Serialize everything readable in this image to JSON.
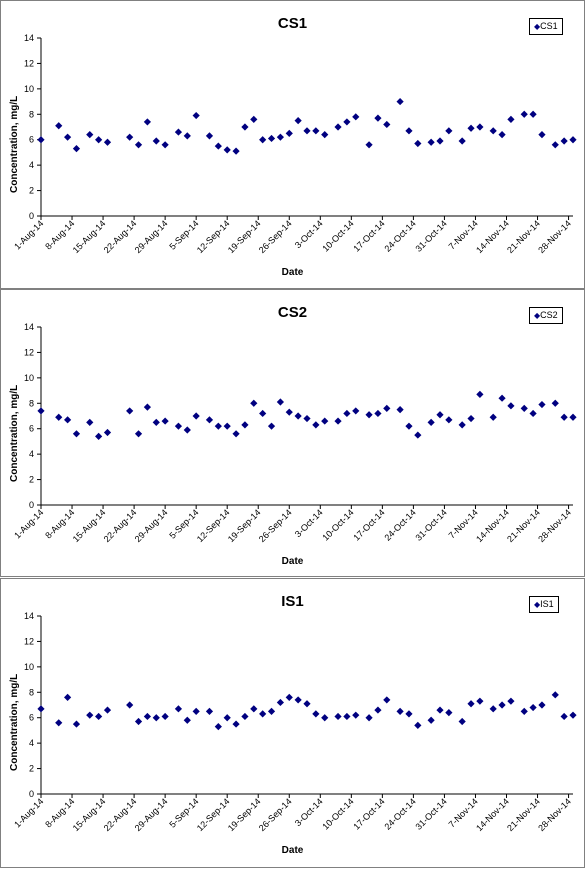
{
  "chart_data": [
    {
      "type": "scatter",
      "title": "CS1",
      "xlabel": "Date",
      "ylabel": "Concentration, mg/L",
      "ylim": [
        0,
        14
      ],
      "yticks": [
        0,
        2,
        4,
        6,
        8,
        10,
        12,
        14
      ],
      "xlim": [
        "2014-08-01",
        "2014-11-29"
      ],
      "xtick_labels": [
        "1-Aug-14",
        "8-Aug-14",
        "15-Aug-14",
        "22-Aug-14",
        "29-Aug-14",
        "5-Sep-14",
        "12-Sep-14",
        "19-Sep-14",
        "26-Sep-14",
        "3-Oct-14",
        "10-Oct-14",
        "17-Oct-14",
        "24-Oct-14",
        "31-Oct-14",
        "7-Nov-14",
        "14-Nov-14",
        "21-Nov-14",
        "28-Nov-14"
      ],
      "xtick_dates": [
        "2014-08-01",
        "2014-08-08",
        "2014-08-15",
        "2014-08-22",
        "2014-08-29",
        "2014-09-05",
        "2014-09-12",
        "2014-09-19",
        "2014-09-26",
        "2014-10-03",
        "2014-10-10",
        "2014-10-17",
        "2014-10-24",
        "2014-10-31",
        "2014-11-07",
        "2014-11-14",
        "2014-11-21",
        "2014-11-28"
      ],
      "grid": false,
      "legend": "top-right",
      "series": [
        {
          "name": "CS1",
          "color": "#000080",
          "marker": "diamond",
          "x": [
            "2014-08-01",
            "2014-08-05",
            "2014-08-07",
            "2014-08-09",
            "2014-08-12",
            "2014-08-14",
            "2014-08-16",
            "2014-08-21",
            "2014-08-23",
            "2014-08-25",
            "2014-08-27",
            "2014-08-29",
            "2014-09-01",
            "2014-09-03",
            "2014-09-05",
            "2014-09-08",
            "2014-09-10",
            "2014-09-12",
            "2014-09-14",
            "2014-09-16",
            "2014-09-18",
            "2014-09-20",
            "2014-09-22",
            "2014-09-24",
            "2014-09-26",
            "2014-09-28",
            "2014-09-30",
            "2014-10-02",
            "2014-10-04",
            "2014-10-07",
            "2014-10-09",
            "2014-10-11",
            "2014-10-14",
            "2014-10-16",
            "2014-10-18",
            "2014-10-21",
            "2014-10-23",
            "2014-10-25",
            "2014-10-28",
            "2014-10-30",
            "2014-11-01",
            "2014-11-04",
            "2014-11-06",
            "2014-11-08",
            "2014-11-11",
            "2014-11-13",
            "2014-11-15",
            "2014-11-18",
            "2014-11-20",
            "2014-11-22",
            "2014-11-25",
            "2014-11-27",
            "2014-11-29"
          ],
          "y": [
            6.0,
            7.1,
            6.2,
            5.3,
            6.4,
            6.0,
            5.8,
            6.2,
            5.6,
            7.4,
            5.9,
            5.6,
            6.6,
            6.3,
            7.9,
            6.3,
            5.5,
            5.2,
            5.1,
            7.0,
            7.6,
            6.0,
            6.1,
            6.2,
            6.5,
            7.5,
            6.7,
            6.7,
            6.4,
            7.0,
            7.4,
            7.8,
            5.6,
            7.7,
            7.2,
            9.0,
            6.7,
            5.7,
            5.8,
            5.9,
            6.7,
            5.9,
            6.9,
            7.0,
            6.7,
            6.4,
            7.6,
            8.0,
            8.0,
            6.4,
            5.6,
            5.9,
            6.0
          ]
        }
      ]
    },
    {
      "type": "scatter",
      "title": "CS2",
      "xlabel": "Date",
      "ylabel": "Concentration, mg/L",
      "ylim": [
        0,
        14
      ],
      "yticks": [
        0,
        2,
        4,
        6,
        8,
        10,
        12,
        14
      ],
      "xlim": [
        "2014-08-01",
        "2014-11-29"
      ],
      "xtick_labels": [
        "1-Aug-14",
        "8-Aug-14",
        "15-Aug-14",
        "22-Aug-14",
        "29-Aug-14",
        "5-Sep-14",
        "12-Sep-14",
        "19-Sep-14",
        "26-Sep-14",
        "3-Oct-14",
        "10-Oct-14",
        "17-Oct-14",
        "24-Oct-14",
        "31-Oct-14",
        "7-Nov-14",
        "14-Nov-14",
        "21-Nov-14",
        "28-Nov-14"
      ],
      "xtick_dates": [
        "2014-08-01",
        "2014-08-08",
        "2014-08-15",
        "2014-08-22",
        "2014-08-29",
        "2014-09-05",
        "2014-09-12",
        "2014-09-19",
        "2014-09-26",
        "2014-10-03",
        "2014-10-10",
        "2014-10-17",
        "2014-10-24",
        "2014-10-31",
        "2014-11-07",
        "2014-11-14",
        "2014-11-21",
        "2014-11-28"
      ],
      "grid": false,
      "legend": "top-right",
      "series": [
        {
          "name": "CS2",
          "color": "#000080",
          "marker": "diamond",
          "x": [
            "2014-08-01",
            "2014-08-05",
            "2014-08-07",
            "2014-08-09",
            "2014-08-12",
            "2014-08-14",
            "2014-08-16",
            "2014-08-21",
            "2014-08-23",
            "2014-08-25",
            "2014-08-27",
            "2014-08-29",
            "2014-09-01",
            "2014-09-03",
            "2014-09-05",
            "2014-09-08",
            "2014-09-10",
            "2014-09-12",
            "2014-09-14",
            "2014-09-16",
            "2014-09-18",
            "2014-09-20",
            "2014-09-22",
            "2014-09-24",
            "2014-09-26",
            "2014-09-28",
            "2014-09-30",
            "2014-10-02",
            "2014-10-04",
            "2014-10-07",
            "2014-10-09",
            "2014-10-11",
            "2014-10-14",
            "2014-10-16",
            "2014-10-18",
            "2014-10-21",
            "2014-10-23",
            "2014-10-25",
            "2014-10-28",
            "2014-10-30",
            "2014-11-01",
            "2014-11-04",
            "2014-11-06",
            "2014-11-08",
            "2014-11-11",
            "2014-11-13",
            "2014-11-15",
            "2014-11-18",
            "2014-11-20",
            "2014-11-22",
            "2014-11-25",
            "2014-11-27",
            "2014-11-29"
          ],
          "y": [
            7.4,
            6.9,
            6.7,
            5.6,
            6.5,
            5.4,
            5.7,
            7.4,
            5.6,
            7.7,
            6.5,
            6.6,
            6.2,
            5.9,
            7.0,
            6.7,
            6.2,
            6.2,
            5.6,
            6.3,
            8.0,
            7.2,
            6.2,
            8.1,
            7.3,
            7.0,
            6.8,
            6.3,
            6.6,
            6.6,
            7.2,
            7.4,
            7.1,
            7.2,
            7.6,
            7.5,
            6.2,
            5.5,
            6.5,
            7.1,
            6.7,
            6.3,
            6.8,
            8.7,
            6.9,
            8.4,
            7.8,
            7.6,
            7.2,
            7.9,
            8.0,
            6.9,
            6.9
          ]
        }
      ]
    },
    {
      "type": "scatter",
      "title": "IS1",
      "xlabel": "Date",
      "ylabel": "Concentration, mg/L",
      "ylim": [
        0,
        14
      ],
      "yticks": [
        0,
        2,
        4,
        6,
        8,
        10,
        12,
        14
      ],
      "xlim": [
        "2014-08-01",
        "2014-11-29"
      ],
      "xtick_labels": [
        "1-Aug-14",
        "8-Aug-14",
        "15-Aug-14",
        "22-Aug-14",
        "29-Aug-14",
        "5-Sep-14",
        "12-Sep-14",
        "19-Sep-14",
        "26-Sep-14",
        "3-Oct-14",
        "10-Oct-14",
        "17-Oct-14",
        "24-Oct-14",
        "31-Oct-14",
        "7-Nov-14",
        "14-Nov-14",
        "21-Nov-14",
        "28-Nov-14"
      ],
      "xtick_dates": [
        "2014-08-01",
        "2014-08-08",
        "2014-08-15",
        "2014-08-22",
        "2014-08-29",
        "2014-09-05",
        "2014-09-12",
        "2014-09-19",
        "2014-09-26",
        "2014-10-03",
        "2014-10-10",
        "2014-10-17",
        "2014-10-24",
        "2014-10-31",
        "2014-11-07",
        "2014-11-14",
        "2014-11-21",
        "2014-11-28"
      ],
      "grid": false,
      "legend": "top-right",
      "series": [
        {
          "name": "IS1",
          "color": "#000080",
          "marker": "diamond",
          "x": [
            "2014-08-01",
            "2014-08-05",
            "2014-08-07",
            "2014-08-09",
            "2014-08-12",
            "2014-08-14",
            "2014-08-16",
            "2014-08-21",
            "2014-08-23",
            "2014-08-25",
            "2014-08-27",
            "2014-08-29",
            "2014-09-01",
            "2014-09-03",
            "2014-09-05",
            "2014-09-08",
            "2014-09-10",
            "2014-09-12",
            "2014-09-14",
            "2014-09-16",
            "2014-09-18",
            "2014-09-20",
            "2014-09-22",
            "2014-09-24",
            "2014-09-26",
            "2014-09-28",
            "2014-09-30",
            "2014-10-02",
            "2014-10-04",
            "2014-10-07",
            "2014-10-09",
            "2014-10-11",
            "2014-10-14",
            "2014-10-16",
            "2014-10-18",
            "2014-10-21",
            "2014-10-23",
            "2014-10-25",
            "2014-10-28",
            "2014-10-30",
            "2014-11-01",
            "2014-11-04",
            "2014-11-06",
            "2014-11-08",
            "2014-11-11",
            "2014-11-13",
            "2014-11-15",
            "2014-11-18",
            "2014-11-20",
            "2014-11-22",
            "2014-11-25",
            "2014-11-27",
            "2014-11-29"
          ],
          "y": [
            6.7,
            5.6,
            7.6,
            5.5,
            6.2,
            6.1,
            6.6,
            7.0,
            5.7,
            6.1,
            6.0,
            6.1,
            6.7,
            5.8,
            6.5,
            6.5,
            5.3,
            6.0,
            5.5,
            6.1,
            6.7,
            6.3,
            6.5,
            7.2,
            7.6,
            7.4,
            7.1,
            6.3,
            6.0,
            6.1,
            6.1,
            6.2,
            6.0,
            6.6,
            7.4,
            6.5,
            6.3,
            5.4,
            5.8,
            6.6,
            6.4,
            5.7,
            7.1,
            7.3,
            6.7,
            7.0,
            7.3,
            6.5,
            6.8,
            7.0,
            7.8,
            6.1,
            6.2
          ]
        }
      ]
    }
  ]
}
